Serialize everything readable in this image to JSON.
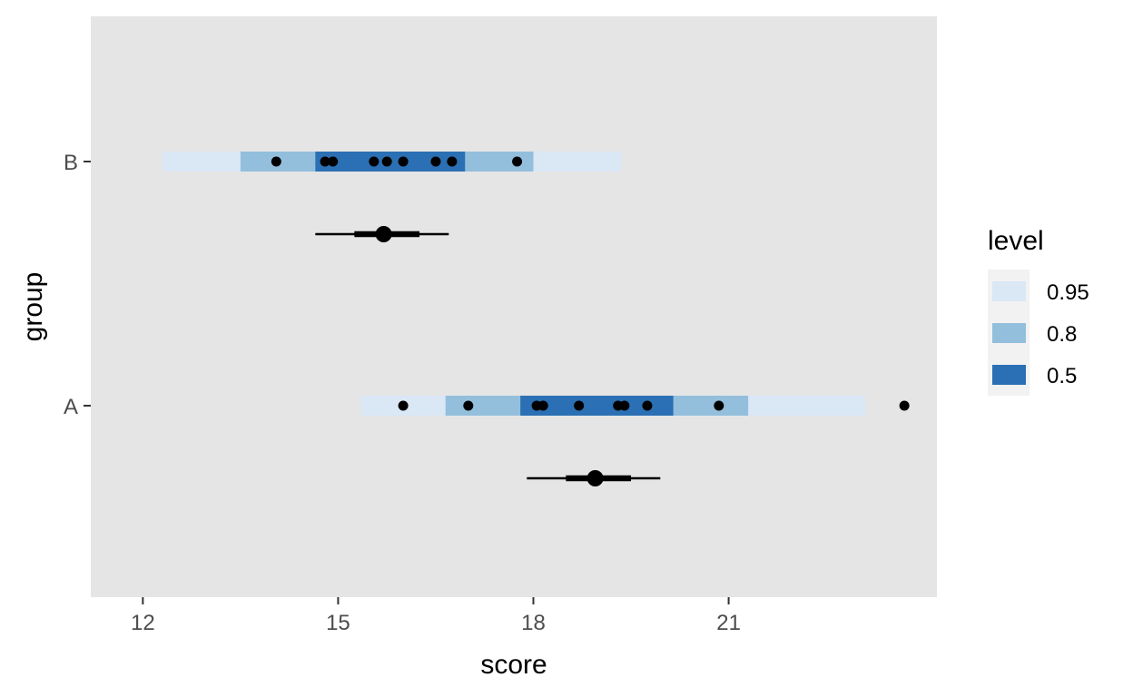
{
  "chart_data": {
    "type": "interval",
    "xlabel": "score",
    "ylabel": "group",
    "xlim": [
      11.8,
      23.7
    ],
    "x_ticks": [
      12,
      15,
      18,
      21
    ],
    "x_tick_labels": [
      "12",
      "15",
      "18",
      "21"
    ],
    "y_categories": [
      "B",
      "A"
    ],
    "legend": {
      "title": "level",
      "placement": "right",
      "entries": [
        {
          "label": "0.95",
          "color": "#dae7f5"
        },
        {
          "label": "0.8",
          "color": "#93bfdc"
        },
        {
          "label": "0.5",
          "color": "#2b70b4"
        }
      ]
    },
    "groups": [
      {
        "name": "B",
        "intervals": [
          {
            "level": "0.95",
            "lower": 12.3,
            "upper": 19.35
          },
          {
            "level": "0.8",
            "lower": 13.5,
            "upper": 18.0
          },
          {
            "level": "0.5",
            "lower": 14.65,
            "upper": 16.95
          }
        ],
        "points": [
          14.05,
          14.8,
          14.92,
          15.55,
          15.75,
          16.0,
          16.5,
          16.75,
          17.75
        ],
        "summary": {
          "point": 15.7,
          "inner": [
            15.25,
            16.25
          ],
          "outer": [
            14.65,
            16.7
          ]
        }
      },
      {
        "name": "A",
        "intervals": [
          {
            "level": "0.95",
            "lower": 15.35,
            "upper": 23.1
          },
          {
            "level": "0.8",
            "lower": 16.65,
            "upper": 21.3
          },
          {
            "level": "0.5",
            "lower": 17.8,
            "upper": 20.15
          }
        ],
        "points": [
          16.0,
          17.0,
          18.05,
          18.15,
          18.7,
          19.3,
          19.4,
          19.75,
          20.85,
          23.7
        ],
        "summary": {
          "point": 18.95,
          "inner": [
            18.5,
            19.5
          ],
          "outer": [
            17.9,
            19.95
          ]
        }
      }
    ]
  }
}
